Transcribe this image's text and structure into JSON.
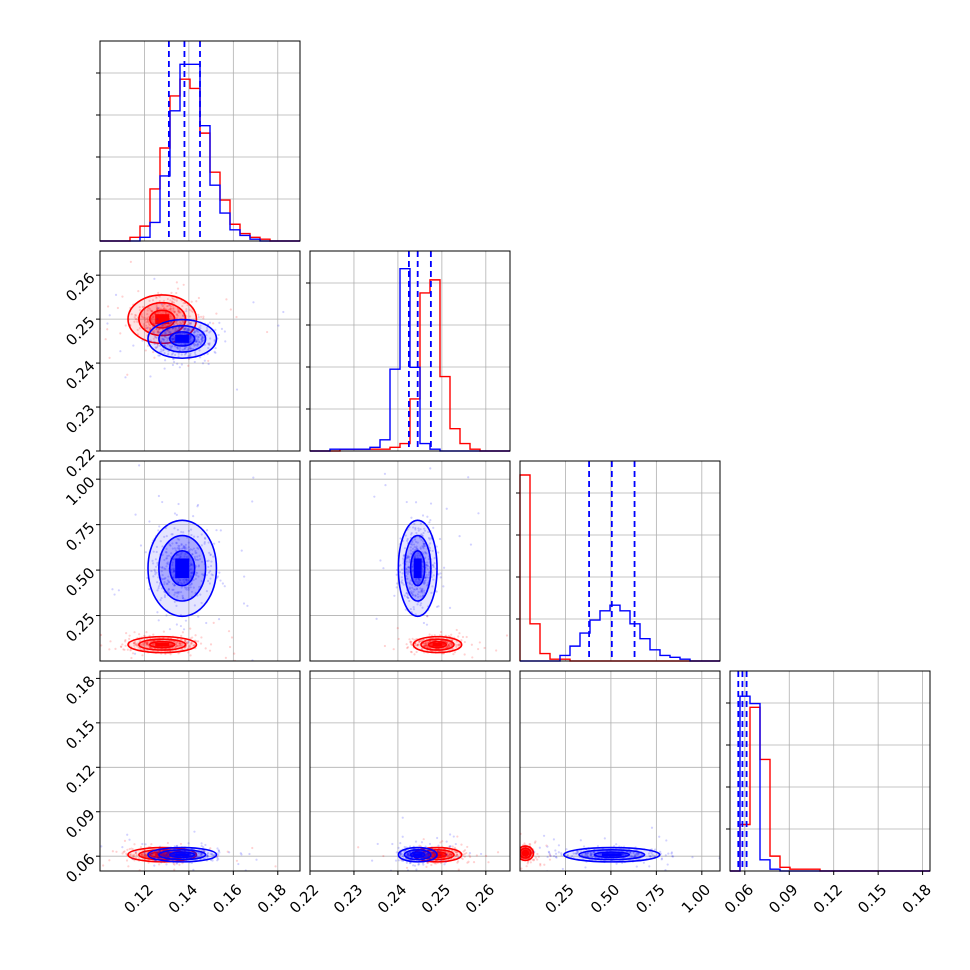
{
  "colors": {
    "series_a": "#ff0000",
    "series_b": "#0000ff",
    "grid": "#b0b0b0",
    "frame": "#000000"
  },
  "chart_data": {
    "type": "corner",
    "parameters": 4,
    "grid": true,
    "series": [
      {
        "color": "red",
        "hist_0": [
          0,
          0,
          0,
          0.02,
          0.08,
          0.28,
          0.5,
          0.78,
          0.87,
          0.82,
          0.58,
          0.37,
          0.22,
          0.09,
          0.04,
          0.02,
          0.01,
          0,
          0,
          0
        ],
        "hist_1": [
          0,
          0,
          0,
          0.01,
          0.01,
          0.01,
          0.01,
          0.01,
          0.02,
          0.04,
          0.28,
          0.85,
          0.92,
          0.4,
          0.12,
          0.04,
          0.01,
          0,
          0,
          0
        ],
        "hist_2": [
          1.0,
          0.2,
          0.04,
          0.01,
          0.01,
          0,
          0,
          0,
          0,
          0,
          0,
          0,
          0,
          0,
          0,
          0,
          0,
          0,
          0,
          0
        ],
        "hist_3": [
          0,
          0.25,
          0.88,
          0.6,
          0.08,
          0.02,
          0.01,
          0.01,
          0.01,
          0,
          0,
          0,
          0,
          0,
          0,
          0,
          0,
          0,
          0,
          0
        ],
        "centers": [
          [
            0.128,
            0.25
          ],
          [
            0.128,
            0.09
          ],
          [
            0.128,
            0.061
          ],
          [
            0.249,
            0.09
          ],
          [
            0.249,
            0.061
          ],
          [
            0.03,
            0.062
          ]
        ]
      },
      {
        "color": "blue",
        "quantiles_0": [
          0.131,
          0.138,
          0.145
        ],
        "quantiles_1": [
          0.2425,
          0.2445,
          0.2475
        ],
        "quantiles_2": [
          0.38,
          0.505,
          0.63
        ],
        "quantiles_3": [
          0.0556,
          0.0584,
          0.0612
        ],
        "hist_0": [
          0,
          0,
          0,
          0,
          0.02,
          0.1,
          0.35,
          0.7,
          0.95,
          0.95,
          0.62,
          0.3,
          0.15,
          0.06,
          0.03,
          0.01,
          0,
          0,
          0,
          0
        ],
        "hist_1": [
          0,
          0,
          0.01,
          0.01,
          0.01,
          0.01,
          0.02,
          0.06,
          0.44,
          0.98,
          0.45,
          0.04,
          0.01,
          0,
          0,
          0,
          0,
          0,
          0,
          0
        ],
        "hist_2": [
          0,
          0,
          0,
          0,
          0.03,
          0.08,
          0.15,
          0.22,
          0.27,
          0.3,
          0.27,
          0.2,
          0.12,
          0.06,
          0.03,
          0.02,
          0.01,
          0,
          0,
          0
        ],
        "hist_3": [
          0,
          0.94,
          0.9,
          0.06,
          0.01,
          0,
          0,
          0,
          0,
          0,
          0,
          0,
          0,
          0,
          0,
          0,
          0,
          0,
          0,
          0
        ],
        "centers": [
          [
            0.137,
            0.2455
          ],
          [
            0.137,
            0.51
          ],
          [
            0.137,
            0.061
          ],
          [
            0.2445,
            0.51
          ],
          [
            0.2445,
            0.061
          ],
          [
            0.505,
            0.061
          ]
        ]
      }
    ],
    "axes": [
      {
        "ticks": [
          0.12,
          0.14,
          0.16,
          0.18
        ],
        "tick_labels": [
          "0.12",
          "0.14",
          "0.16",
          "0.18"
        ],
        "range": [
          0.1,
          0.19
        ]
      },
      {
        "ticks": [
          0.22,
          0.23,
          0.24,
          0.25,
          0.26
        ],
        "tick_labels": [
          "0.22",
          "0.23",
          "0.24",
          "0.25",
          "0.26"
        ],
        "range": [
          0.22,
          0.2655
        ]
      },
      {
        "ticks": [
          0.25,
          0.5,
          0.75,
          1.0
        ],
        "tick_labels": [
          "0.25",
          "0.50",
          "0.75",
          "1.00"
        ],
        "range": [
          0.0,
          1.1
        ]
      },
      {
        "ticks": [
          0.06,
          0.09,
          0.12,
          0.15,
          0.18
        ],
        "tick_labels": [
          "0.06",
          "0.09",
          "0.12",
          "0.15",
          "0.18"
        ],
        "range": [
          0.05,
          0.185
        ]
      }
    ]
  }
}
